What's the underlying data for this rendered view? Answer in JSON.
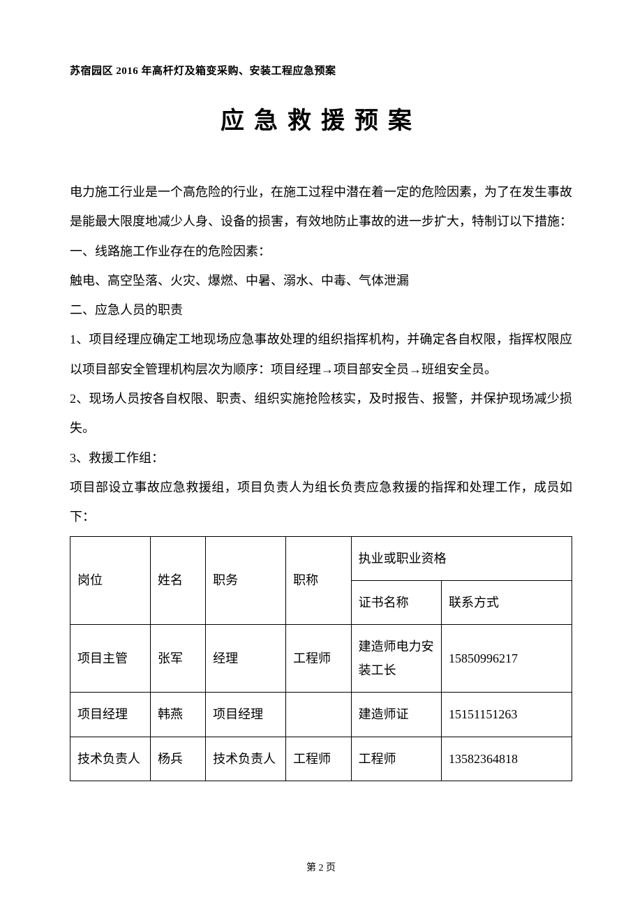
{
  "header": "苏宿园区 2016 年高杆灯及箱变采购、安装工程应急预案",
  "title": "应急救援预案",
  "paragraphs": {
    "p1": "电力施工行业是一个高危险的行业，在施工过程中潜在着一定的危险因素，为了在发生事故是能最大限度地减少人身、设备的损害，有效地防止事故的进一步扩大，特制订以下措施：",
    "s1_title": "一、线路施工作业存在的危险因素：",
    "s1_body": "触电、高空坠落、火灾、爆燃、中暑、溺水、中毒、气体泄漏",
    "s2_title": "二、应急人员的职责",
    "s2_1": "1、项目经理应确定工地现场应急事故处理的组织指挥机构，并确定各自权限，指挥权限应以项目部安全管理机构层次为顺序：项目经理→项目部安全员→班组安全员。",
    "s2_2": "2、现场人员按各自权限、职责、组织实施抢险核实，及时报告、报警，并保护现场减少损失。",
    "s2_3": "3、救援工作组：",
    "s2_3b": "项目部设立事故应急救援组，项目负责人为组长负责应急救援的指挥和处理工作，成员如下："
  },
  "table": {
    "header": {
      "c1": "岗位",
      "c2": "姓名",
      "c3": "职务",
      "c4": "职称",
      "c5_group": "执业或职业资格",
      "c5": "证书名称",
      "c6": "联系方式"
    },
    "rows": [
      {
        "c1": "项目主管",
        "c2": "张军",
        "c3": "经理",
        "c4": "工程师",
        "c5": "建造师电力安装工长",
        "c6": "15850996217"
      },
      {
        "c1": "项目经理",
        "c2": "韩燕",
        "c3": "项目经理",
        "c4": "",
        "c5": "建造师证",
        "c6": "15151151263"
      },
      {
        "c1": "技术负责人",
        "c2": "杨兵",
        "c3": "技术负责人",
        "c4": "工程师",
        "c5": "工程师",
        "c6": "13582364818"
      }
    ],
    "col_widths": [
      "16%",
      "11%",
      "16%",
      "13%",
      "18%",
      "26%"
    ]
  },
  "footer": "第 2 页",
  "style": {
    "page_bg": "#ffffff",
    "text_color": "#000000",
    "border_color": "#000000",
    "body_fontsize": 18,
    "title_fontsize": 34,
    "header_fontsize": 15,
    "footer_fontsize": 14
  }
}
